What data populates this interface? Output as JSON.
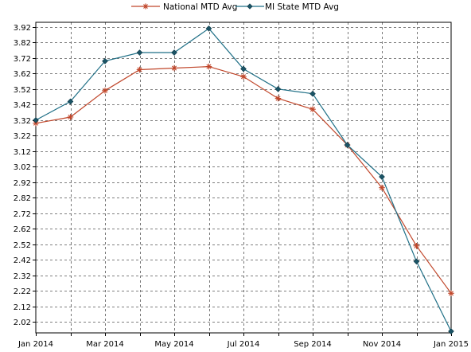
{
  "chart_data": {
    "type": "line",
    "title": "",
    "xlabel": "",
    "ylabel": "",
    "x": [
      "2014-01",
      "2014-02",
      "2014-03",
      "2014-04",
      "2014-05",
      "2014-06",
      "2014-07",
      "2014-08",
      "2014-09",
      "2014-10",
      "2014-11",
      "2014-12",
      "2015-01"
    ],
    "x_tick_labels": [
      "Jan 2014",
      "Mar 2014",
      "May 2014",
      "Jul 2014",
      "Sep 2014",
      "Nov 2014",
      "Jan 2015"
    ],
    "y_tick_labels": [
      "3.92",
      "3.82",
      "3.72",
      "3.62",
      "3.52",
      "3.42",
      "3.32",
      "3.22",
      "3.12",
      "3.02",
      "2.92",
      "2.82",
      "2.72",
      "2.62",
      "2.52",
      "2.42",
      "2.32",
      "2.22",
      "2.12",
      "2.02"
    ],
    "ylim": [
      1.95,
      3.95
    ],
    "grid": true,
    "legend_position": "top-center",
    "series": [
      {
        "name": "National MTD Avg",
        "color": "#c0462a",
        "marker": "asterisk",
        "values": [
          3.3,
          3.34,
          3.51,
          3.645,
          3.655,
          3.665,
          3.6,
          3.46,
          3.39,
          3.16,
          2.885,
          2.51,
          2.205
        ]
      },
      {
        "name": "MI State MTD Avg",
        "color": "#1f6f86",
        "marker": "diamond",
        "values": [
          3.32,
          3.44,
          3.7,
          3.755,
          3.755,
          3.91,
          3.65,
          3.52,
          3.49,
          3.16,
          2.955,
          2.41,
          1.96
        ]
      }
    ]
  }
}
